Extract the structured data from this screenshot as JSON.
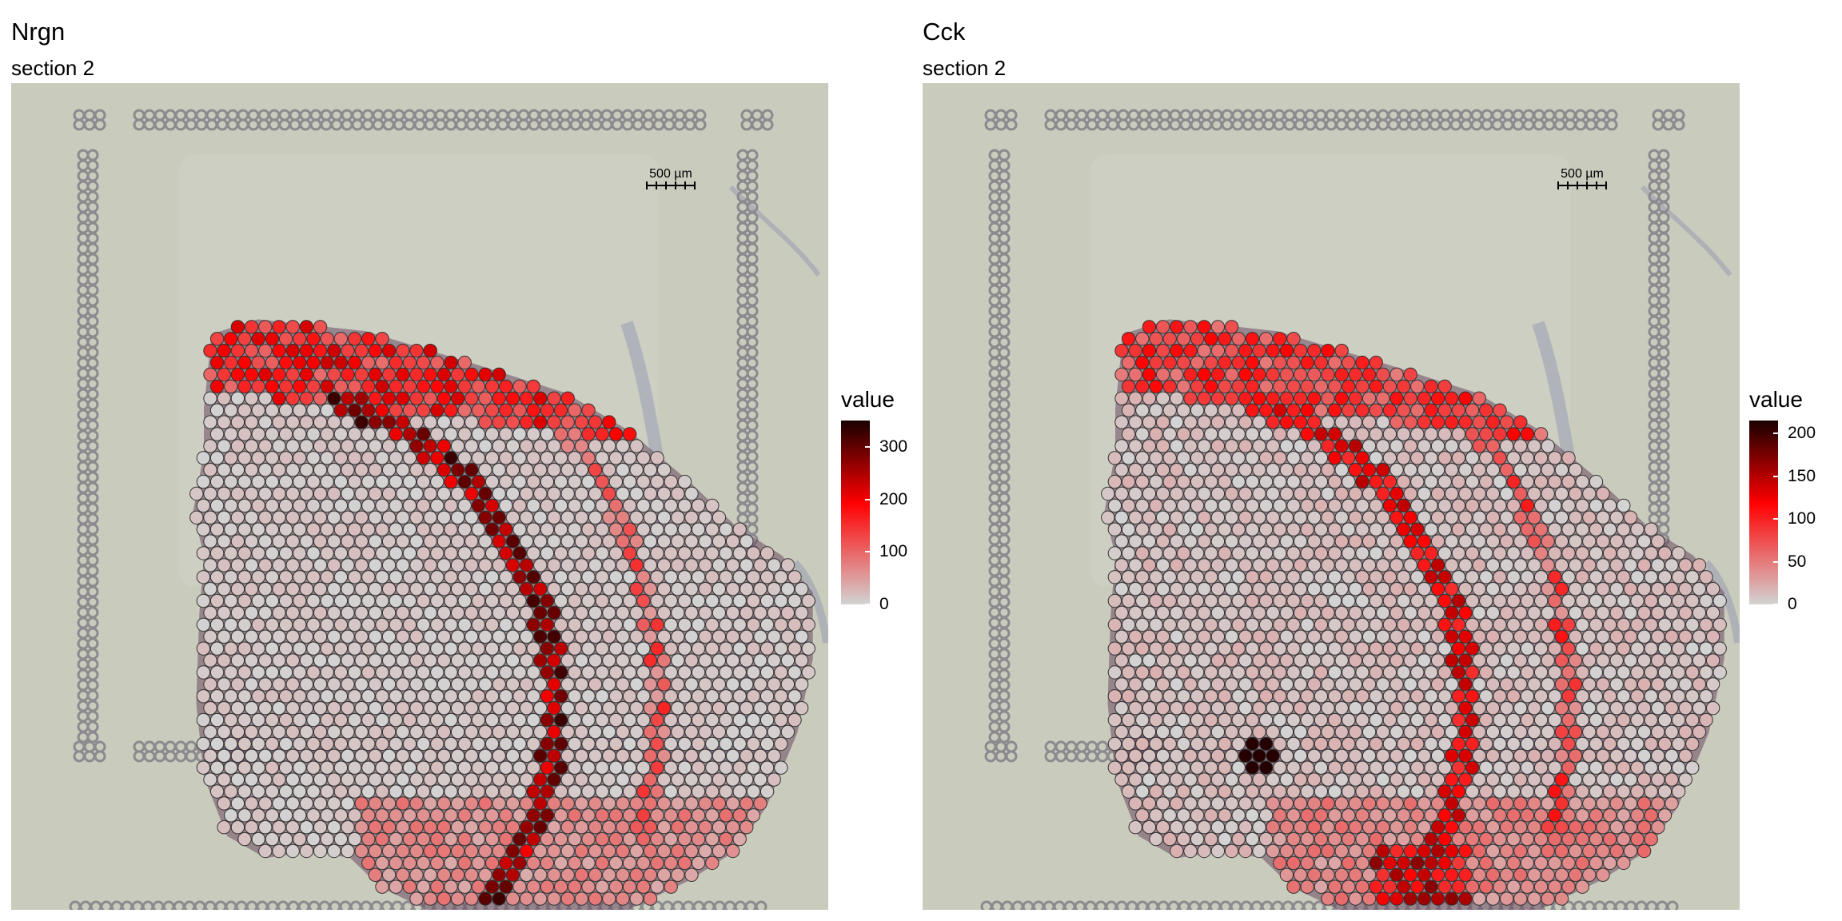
{
  "panels": [
    {
      "title": "Nrgn",
      "subtitle": "section 2",
      "scale_bar_label": "500 µm",
      "legend": {
        "title": "value",
        "ticks": [
          0,
          100,
          200,
          300
        ],
        "max": 350
      }
    },
    {
      "title": "Cck",
      "subtitle": "section 2",
      "scale_bar_label": "500 µm",
      "legend": {
        "title": "value",
        "ticks": [
          0,
          50,
          100,
          150,
          200
        ],
        "max": 215
      }
    }
  ],
  "colors": {
    "background_slide": "#c9cbbd",
    "spot_low": "#d3d3d3",
    "spot_mid": "#ff0000",
    "spot_high": "#1a0000",
    "fiducial": "#8c8a8e",
    "tissue_edge": "#6b4a63"
  },
  "chart_data": [
    {
      "type": "heatmap",
      "title": "Nrgn",
      "subtitle": "section 2",
      "legend_title": "value",
      "color_range": [
        0,
        350
      ],
      "colorbar_ticks": [
        0,
        100,
        200,
        300
      ],
      "description_regions": [
        {
          "region": "upper cortex band",
          "value": 260
        },
        {
          "region": "upper-left tip",
          "value": 320
        },
        {
          "region": "hippocampal curved band",
          "value": 340
        },
        {
          "region": "outer curved band",
          "value": 170
        },
        {
          "region": "lower edge",
          "value": 100
        },
        {
          "region": "interior",
          "value": 10
        }
      ]
    },
    {
      "type": "heatmap",
      "title": "Cck",
      "subtitle": "section 2",
      "legend_title": "value",
      "color_range": [
        0,
        215
      ],
      "colorbar_ticks": [
        0,
        50,
        100,
        150,
        200
      ],
      "description_regions": [
        {
          "region": "upper cortex band",
          "value": 150
        },
        {
          "region": "hippocampal curved band",
          "value": 140
        },
        {
          "region": "outer curved band",
          "value": 110
        },
        {
          "region": "bottom cluster",
          "value": 170
        },
        {
          "region": "lower-left hotspot",
          "value": 210
        },
        {
          "region": "interior",
          "value": 10
        }
      ]
    }
  ]
}
